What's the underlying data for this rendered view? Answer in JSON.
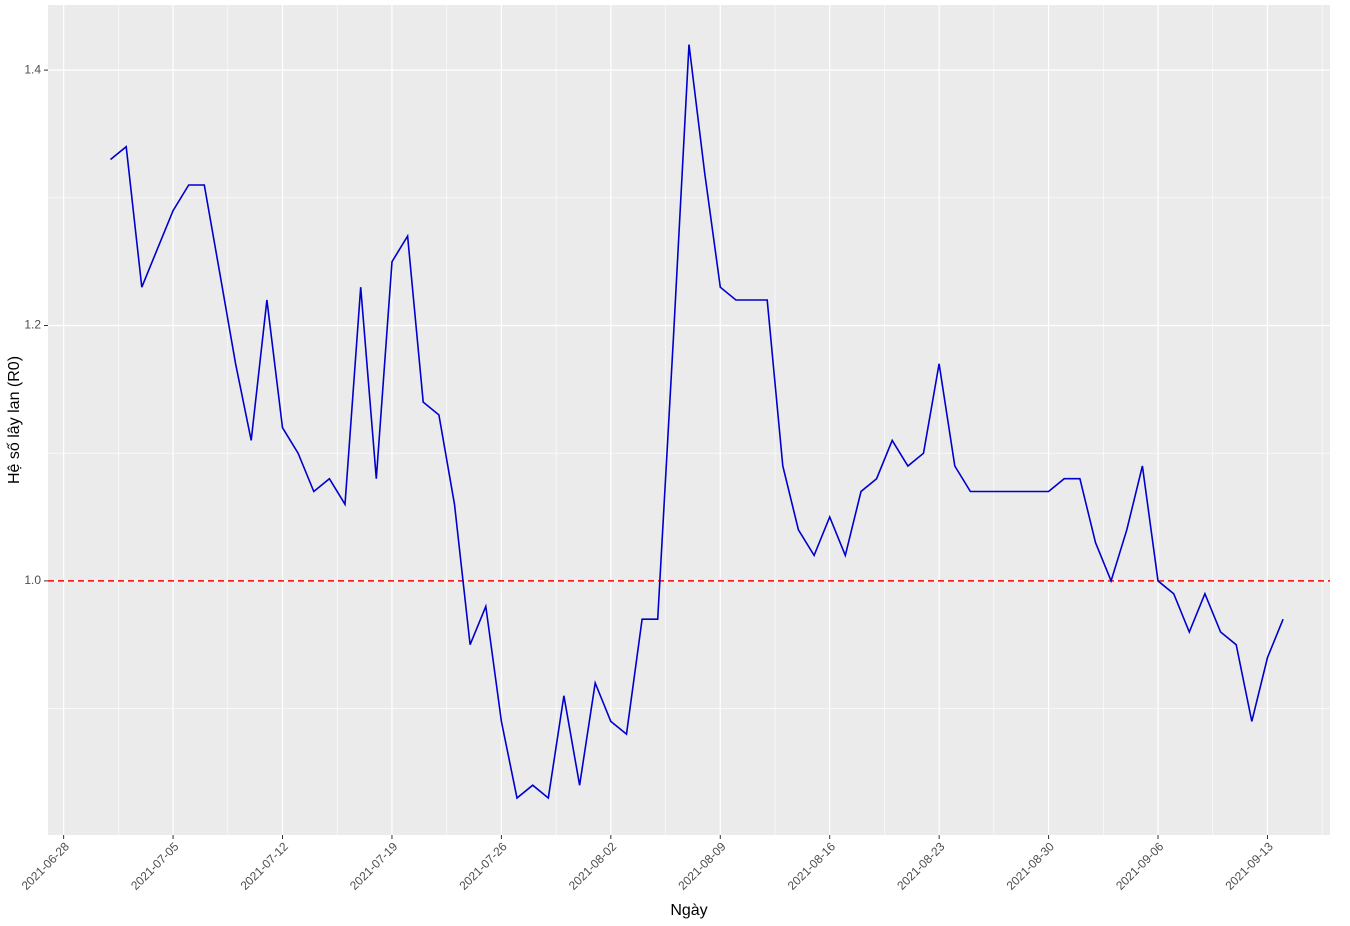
{
  "chart_data": {
    "type": "line",
    "x_label": "Ngày",
    "y_label": "Hệ số lây lan (R0)",
    "x": [
      "2021-07-01",
      "2021-07-02",
      "2021-07-03",
      "2021-07-04",
      "2021-07-05",
      "2021-07-06",
      "2021-07-07",
      "2021-07-08",
      "2021-07-09",
      "2021-07-10",
      "2021-07-11",
      "2021-07-12",
      "2021-07-13",
      "2021-07-14",
      "2021-07-15",
      "2021-07-16",
      "2021-07-17",
      "2021-07-18",
      "2021-07-19",
      "2021-07-20",
      "2021-07-21",
      "2021-07-22",
      "2021-07-23",
      "2021-07-24",
      "2021-07-25",
      "2021-07-26",
      "2021-07-27",
      "2021-07-28",
      "2021-07-29",
      "2021-07-30",
      "2021-07-31",
      "2021-08-01",
      "2021-08-02",
      "2021-08-03",
      "2021-08-04",
      "2021-08-05",
      "2021-08-06",
      "2021-08-07",
      "2021-08-08",
      "2021-08-09",
      "2021-08-10",
      "2021-08-11",
      "2021-08-12",
      "2021-08-13",
      "2021-08-14",
      "2021-08-15",
      "2021-08-16",
      "2021-08-17",
      "2021-08-18",
      "2021-08-19",
      "2021-08-20",
      "2021-08-21",
      "2021-08-22",
      "2021-08-23",
      "2021-08-24",
      "2021-08-25",
      "2021-08-26",
      "2021-08-27",
      "2021-08-28",
      "2021-08-29",
      "2021-08-30",
      "2021-08-31",
      "2021-09-01",
      "2021-09-02",
      "2021-09-03",
      "2021-09-04",
      "2021-09-05",
      "2021-09-06",
      "2021-09-07",
      "2021-09-08",
      "2021-09-09",
      "2021-09-10",
      "2021-09-11",
      "2021-09-12",
      "2021-09-13",
      "2021-09-14"
    ],
    "series": [
      {
        "color": "#0000cd",
        "values": [
          1.33,
          1.34,
          1.23,
          1.26,
          1.29,
          1.31,
          1.31,
          1.24,
          1.17,
          1.11,
          1.22,
          1.12,
          1.1,
          1.07,
          1.08,
          1.06,
          1.23,
          1.08,
          1.25,
          1.27,
          1.14,
          1.13,
          1.06,
          0.95,
          0.98,
          0.89,
          0.83,
          0.84,
          0.83,
          0.91,
          0.84,
          0.92,
          0.89,
          0.88,
          0.97,
          0.97,
          1.19,
          1.42,
          1.32,
          1.23,
          1.22,
          1.22,
          1.22,
          1.09,
          1.04,
          1.02,
          1.05,
          1.02,
          1.07,
          1.08,
          1.11,
          1.09,
          1.1,
          1.17,
          1.09,
          1.07,
          1.07,
          1.07,
          1.07,
          1.07,
          1.07,
          1.08,
          1.08,
          1.03,
          1.0,
          1.04,
          1.09,
          1.0,
          0.99,
          0.96,
          0.99,
          0.96,
          0.95,
          0.89,
          0.94,
          0.97
        ]
      }
    ],
    "xlim": [
      "2021-06-27",
      "2021-09-17"
    ],
    "xticks": [
      "2021-06-28",
      "2021-07-05",
      "2021-07-12",
      "2021-07-19",
      "2021-07-26",
      "2021-08-02",
      "2021-08-09",
      "2021-08-16",
      "2021-08-23",
      "2021-08-30",
      "2021-09-06",
      "2021-09-13"
    ],
    "ylim": [
      0.801,
      1.451
    ],
    "yticks": [
      {
        "value": 1,
        "label": "1.0"
      },
      1.2,
      1.4
    ],
    "hline": {
      "value": 1,
      "color": "#ff0000"
    },
    "grid": true
  }
}
